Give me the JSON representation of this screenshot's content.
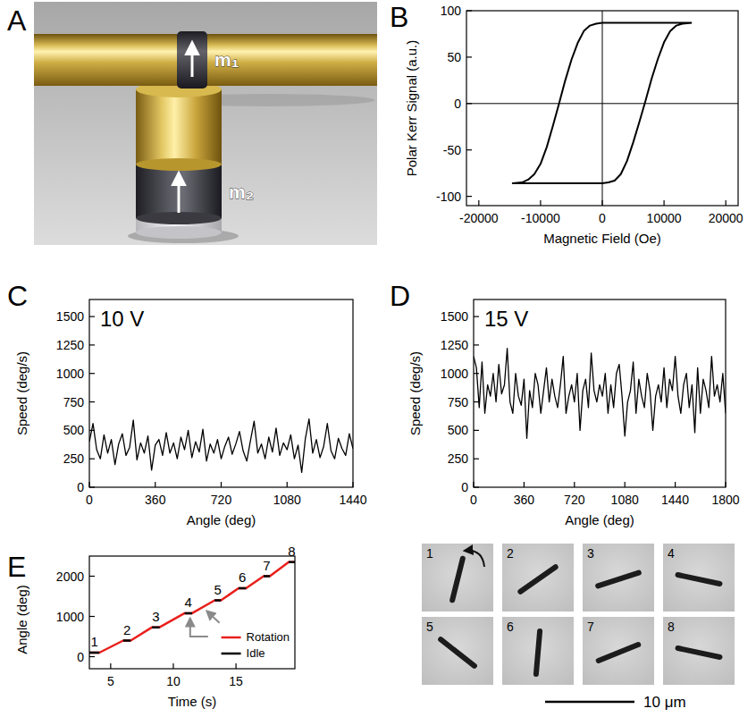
{
  "illustration": {
    "panel": "A",
    "labels": [
      "m₁",
      "m₂"
    ]
  },
  "micrographs": {
    "frames": [
      "1",
      "2",
      "3",
      "4",
      "5",
      "6",
      "7",
      "8"
    ],
    "scale_bar": "10 μm"
  },
  "chart_data": [
    {
      "type": "line",
      "panel": "B",
      "x_label": "Magnetic Field (Oe)",
      "y_label": "Polar Kerr Signal (a.u.)",
      "color": "#000000",
      "x": [
        14500,
        10000,
        5000,
        0,
        -1000,
        -2000,
        -3000,
        -4000,
        -5000,
        -6000,
        -7000,
        -8000,
        -9000,
        -10000,
        -11000,
        -12000,
        -13000,
        -14500,
        -10000,
        -5000,
        0,
        1000,
        2000,
        3000,
        4000,
        5000,
        6000,
        7000,
        8000,
        9000,
        10000,
        11000,
        12000,
        13000,
        14500
      ],
      "values": [
        87,
        87,
        87,
        87,
        86,
        84,
        78,
        65,
        47,
        25,
        0,
        -24,
        -47,
        -65,
        -76,
        -82,
        -85,
        -86,
        -86,
        -86,
        -86,
        -85,
        -83,
        -76,
        -62,
        -42,
        -20,
        3,
        27,
        48,
        66,
        78,
        84,
        86,
        87
      ],
      "xlim": [
        -22000,
        22000
      ],
      "ylim": [
        -110,
        100
      ],
      "xticks": [
        -20000,
        -10000,
        0,
        10000,
        20000
      ],
      "yticks": [
        -100,
        -50,
        0,
        50,
        100
      ]
    },
    {
      "type": "line",
      "panel": "C",
      "x_label": "Angle (deg)",
      "y_label": "Speed (deg/s)",
      "annotations": [
        {
          "text": "10 V"
        }
      ],
      "color": "#000000",
      "x": [
        0,
        20,
        40,
        60,
        80,
        100,
        120,
        140,
        160,
        180,
        200,
        220,
        240,
        260,
        280,
        300,
        320,
        340,
        360,
        380,
        400,
        420,
        440,
        460,
        480,
        500,
        520,
        540,
        560,
        580,
        600,
        620,
        640,
        660,
        680,
        700,
        720,
        740,
        760,
        780,
        800,
        820,
        840,
        860,
        880,
        900,
        920,
        940,
        960,
        980,
        1000,
        1020,
        1040,
        1060,
        1080,
        1100,
        1120,
        1140,
        1160,
        1180,
        1200,
        1220,
        1240,
        1260,
        1280,
        1300,
        1320,
        1340,
        1360,
        1380,
        1400,
        1420,
        1440
      ],
      "values": [
        400,
        560,
        330,
        250,
        460,
        300,
        420,
        200,
        380,
        470,
        280,
        350,
        590,
        240,
        390,
        300,
        450,
        150,
        370,
        420,
        280,
        480,
        300,
        390,
        250,
        440,
        330,
        500,
        260,
        400,
        310,
        510,
        230,
        380,
        300,
        420,
        250,
        360,
        440,
        290,
        380,
        490,
        320,
        230,
        410,
        580,
        300,
        380,
        250,
        440,
        310,
        520,
        280,
        390,
        330,
        460,
        250,
        370,
        130,
        430,
        600,
        300,
        420,
        260,
        360,
        560,
        320,
        250,
        430,
        340,
        280,
        470,
        340
      ],
      "xlim": [
        0,
        1440
      ],
      "ylim": [
        0,
        1650
      ],
      "xticks": [
        0,
        360,
        720,
        1080,
        1440
      ],
      "yticks": [
        0,
        250,
        500,
        750,
        1000,
        1250,
        1500
      ]
    },
    {
      "type": "line",
      "panel": "D",
      "x_label": "Angle (deg)",
      "y_label": "Speed (deg/s)",
      "annotations": [
        {
          "text": "15 V"
        }
      ],
      "color": "#000000",
      "x": [
        0,
        20,
        40,
        60,
        80,
        100,
        120,
        140,
        160,
        180,
        200,
        220,
        240,
        260,
        280,
        300,
        320,
        340,
        360,
        380,
        400,
        420,
        440,
        460,
        480,
        500,
        520,
        540,
        560,
        580,
        600,
        620,
        640,
        660,
        680,
        700,
        720,
        740,
        760,
        780,
        800,
        820,
        840,
        860,
        880,
        900,
        920,
        940,
        960,
        980,
        1000,
        1020,
        1040,
        1060,
        1080,
        1100,
        1120,
        1140,
        1160,
        1180,
        1200,
        1220,
        1240,
        1260,
        1280,
        1300,
        1320,
        1340,
        1360,
        1380,
        1400,
        1420,
        1440,
        1460,
        1480,
        1500,
        1520,
        1540,
        1560,
        1580,
        1600,
        1620,
        1640,
        1660,
        1680,
        1700,
        1720,
        1740,
        1760,
        1780,
        1800
      ],
      "values": [
        1150,
        1050,
        700,
        1100,
        650,
        900,
        800,
        1000,
        750,
        1080,
        820,
        900,
        1220,
        750,
        650,
        1000,
        800,
        720,
        950,
        430,
        850,
        700,
        1000,
        900,
        650,
        850,
        1050,
        750,
        950,
        800,
        700,
        900,
        1150,
        650,
        800,
        900,
        750,
        1000,
        500,
        850,
        950,
        700,
        1180,
        850,
        750,
        900,
        800,
        1000,
        650,
        900,
        700,
        1000,
        1080,
        800,
        450,
        750,
        850,
        1100,
        650,
        950,
        800,
        700,
        1000,
        850,
        500,
        800,
        900,
        750,
        1050,
        700,
        950,
        850,
        1150,
        800,
        650,
        900,
        1000,
        700,
        900,
        480,
        1050,
        650,
        950,
        850,
        700,
        1150,
        800,
        900,
        750,
        1000,
        650
      ],
      "xlim": [
        0,
        1800
      ],
      "ylim": [
        0,
        1650
      ],
      "xticks": [
        0,
        360,
        720,
        1080,
        1440,
        1800
      ],
      "yticks": [
        0,
        250,
        500,
        750,
        1000,
        1250,
        1500
      ]
    },
    {
      "type": "line",
      "panel": "E",
      "x_label": "Time (s)",
      "y_label": "Angle (deg)",
      "legend": "lower right",
      "series": [
        {
          "name": "Rotation",
          "color": "#e8201c",
          "x": [
            3.3,
            4.1,
            6.0,
            6.6,
            8.3,
            8.9,
            10.9,
            11.5,
            13.3,
            13.8,
            15.2,
            15.8,
            17.2,
            17.7,
            19.2,
            19.7
          ],
          "values": [
            100,
            100,
            400,
            400,
            730,
            730,
            1080,
            1080,
            1400,
            1400,
            1700,
            1700,
            2000,
            2000,
            2350,
            2350
          ]
        },
        {
          "name": "Idle",
          "color": "#000000",
          "x": [
            3.3,
            4.1,
            null,
            6.0,
            6.6,
            null,
            8.3,
            8.9,
            null,
            10.9,
            11.5,
            null,
            13.3,
            13.8,
            null,
            15.2,
            15.8,
            null,
            17.2,
            17.7,
            null,
            19.2,
            19.7
          ],
          "values": [
            100,
            100,
            null,
            400,
            400,
            null,
            730,
            730,
            null,
            1080,
            1080,
            null,
            1400,
            1400,
            null,
            1700,
            1700,
            null,
            2000,
            2000,
            null,
            2350,
            2350
          ]
        }
      ],
      "annotations": [
        {
          "text": "1",
          "x": 3.7,
          "y": 100
        },
        {
          "text": "2",
          "x": 6.3,
          "y": 400
        },
        {
          "text": "3",
          "x": 8.6,
          "y": 730
        },
        {
          "text": "4",
          "x": 11.2,
          "y": 1080
        },
        {
          "text": "5",
          "x": 13.55,
          "y": 1400
        },
        {
          "text": "6",
          "x": 15.5,
          "y": 1700
        },
        {
          "text": "7",
          "x": 17.45,
          "y": 2000
        },
        {
          "text": "8",
          "x": 19.45,
          "y": 2350
        }
      ],
      "xlim": [
        3.3,
        19.7
      ],
      "ylim": [
        -300,
        2500
      ],
      "xticks": [
        5,
        10,
        15
      ],
      "yticks": [
        0,
        1000,
        2000
      ]
    }
  ]
}
